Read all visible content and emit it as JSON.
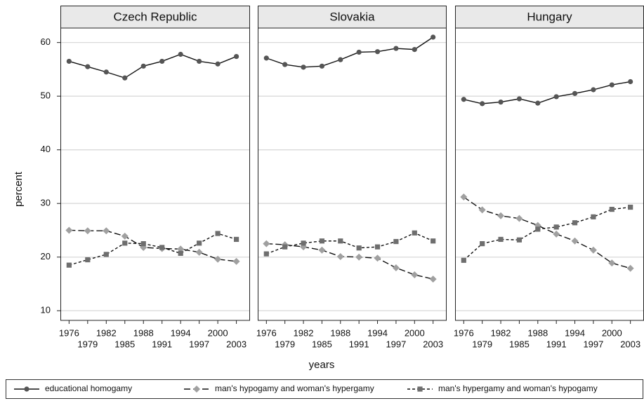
{
  "chart_data": {
    "type": "line",
    "ylabel": "percent",
    "xlabel": "years",
    "x": [
      1976,
      1979,
      1982,
      1985,
      1988,
      1991,
      1994,
      1997,
      2000,
      2003
    ],
    "xlim": [
      1974.6,
      2005.2
    ],
    "xticks": [
      1976,
      1979,
      1982,
      1985,
      1988,
      1991,
      1994,
      1997,
      2000,
      2003
    ],
    "ylim": [
      8.2,
      62.7
    ],
    "yticks": [
      10,
      20,
      30,
      40,
      50,
      60
    ],
    "grid": true,
    "series": [
      {
        "name": "educational homogamy",
        "color": "#555555",
        "marker": "circle",
        "dash": "none"
      },
      {
        "name": "man's hypogamy and woman's hypergamy",
        "color": "#a0a0a0",
        "marker": "diamond",
        "dash": "9 4"
      },
      {
        "name": "man's hypergamy and woman's hypogamy",
        "color": "#6e6e6e",
        "marker": "square",
        "dash": "4 3"
      }
    ],
    "panels": [
      {
        "title": "Czech Republic",
        "series": [
          {
            "values": [
              56.5,
              55.5,
              54.5,
              53.4,
              55.6,
              56.5,
              57.8,
              56.5,
              56.0,
              57.4
            ]
          },
          {
            "values": [
              25.0,
              24.9,
              24.9,
              23.9,
              21.8,
              21.6,
              21.5,
              20.9,
              19.6,
              19.2
            ]
          },
          {
            "values": [
              18.5,
              19.5,
              20.5,
              22.6,
              22.5,
              21.8,
              20.7,
              22.6,
              24.4,
              23.3
            ]
          }
        ]
      },
      {
        "title": "Slovakia",
        "series": [
          {
            "values": [
              57.1,
              55.9,
              55.4,
              55.6,
              56.8,
              58.2,
              58.3,
              58.9,
              58.7,
              61.0
            ]
          },
          {
            "values": [
              22.5,
              22.3,
              21.9,
              21.3,
              20.1,
              20.0,
              19.8,
              18.0,
              16.7,
              15.9
            ]
          },
          {
            "values": [
              20.6,
              21.9,
              22.6,
              23.0,
              23.0,
              21.7,
              21.9,
              22.9,
              24.5,
              23.0
            ]
          }
        ]
      },
      {
        "title": "Hungary",
        "series": [
          {
            "values": [
              49.4,
              48.6,
              48.9,
              49.5,
              48.7,
              49.9,
              50.5,
              51.2,
              52.1,
              52.7
            ]
          },
          {
            "values": [
              31.2,
              28.8,
              27.7,
              27.2,
              25.9,
              24.3,
              23.0,
              21.3,
              18.9,
              17.9
            ]
          },
          {
            "values": [
              19.4,
              22.5,
              23.3,
              23.2,
              25.2,
              25.6,
              26.4,
              27.5,
              28.9,
              29.3
            ]
          }
        ]
      }
    ]
  }
}
